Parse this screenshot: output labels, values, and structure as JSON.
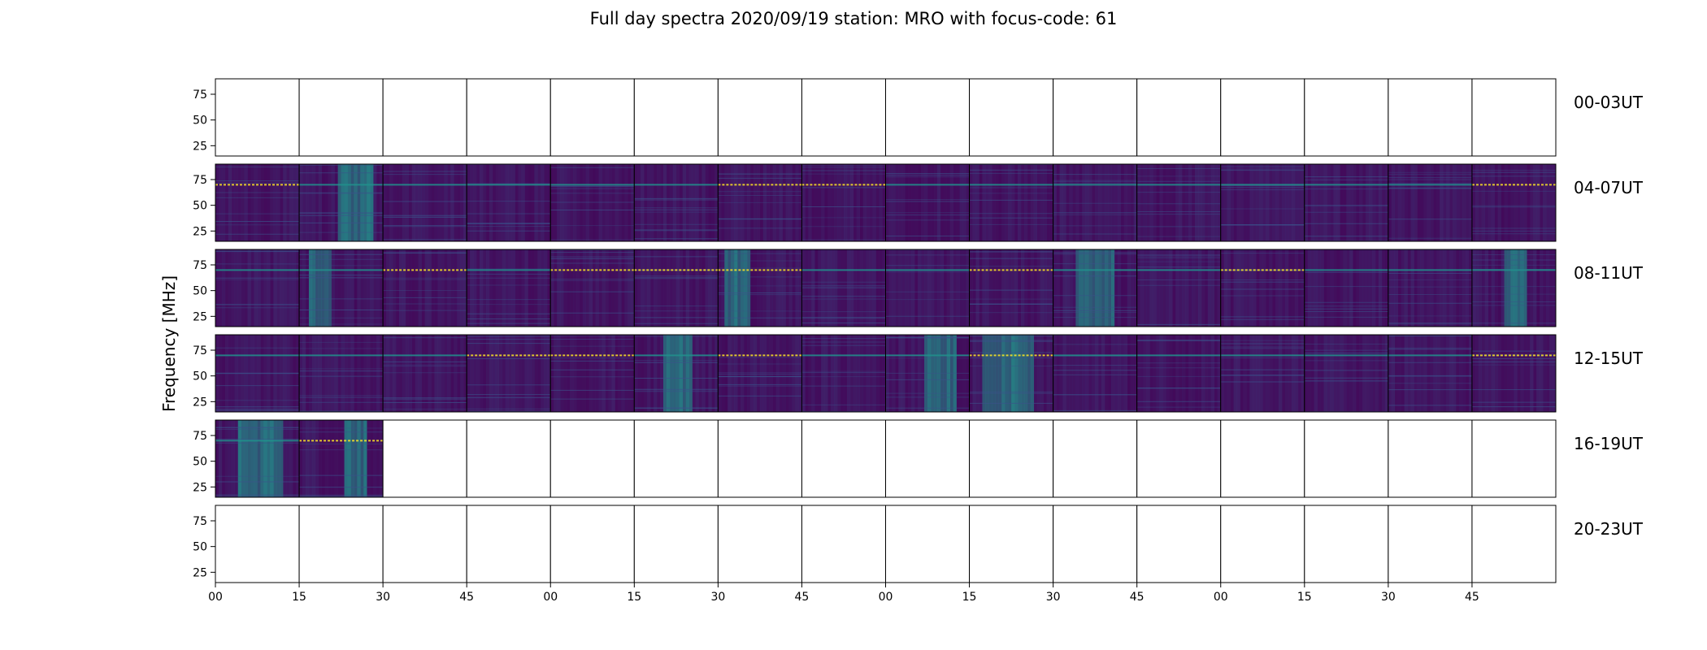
{
  "chart_data": {
    "type": "heatmap",
    "title": "Full day spectra 2020/09/19 station: MRO with focus-code: 61",
    "ylabel": "Frequency [MHz]",
    "ylim": [
      15,
      90
    ],
    "yticks": [
      "75",
      "50",
      "25"
    ],
    "ytick_values": [
      75,
      50,
      25
    ],
    "xtick_labels": [
      "00",
      "15",
      "30",
      "45",
      "00",
      "15",
      "30",
      "45",
      "00",
      "15",
      "30",
      "45",
      "00",
      "15",
      "30",
      "45"
    ],
    "rows": [
      {
        "label": "00-03UT",
        "panels_with_data": 0
      },
      {
        "label": "04-07UT",
        "panels_with_data": 16
      },
      {
        "label": "08-11UT",
        "panels_with_data": 16
      },
      {
        "label": "12-15UT",
        "panels_with_data": 16
      },
      {
        "label": "16-19UT",
        "panels_with_data": 2
      },
      {
        "label": "20-23UT",
        "panels_with_data": 0
      }
    ],
    "panels_per_row": 16,
    "colormap": [
      "#440154",
      "#3b528b",
      "#21918c",
      "#5ec962",
      "#fde725"
    ],
    "bright_band_mhz": 70,
    "grid": false
  }
}
